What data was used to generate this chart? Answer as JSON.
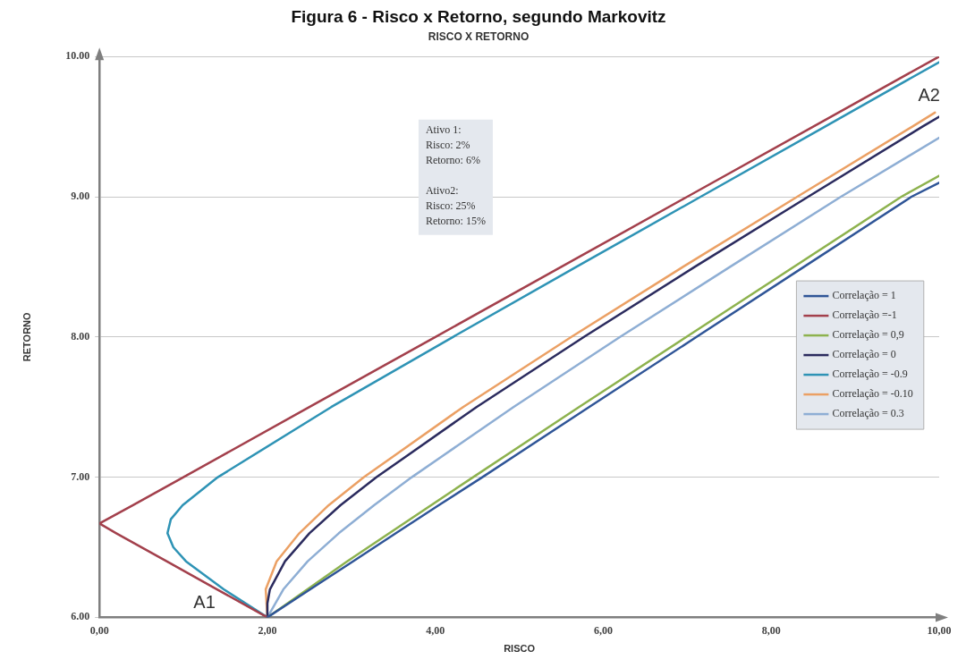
{
  "chart_data": {
    "type": "line",
    "title": "Figura 6 - Risco x Retorno, segundo Markovitz",
    "subtitle": "RISCO X RETORNO",
    "xlabel": "RISCO",
    "ylabel": "RETORNO",
    "xlim": [
      0,
      10
    ],
    "xticks": [
      {
        "value": 0,
        "label": "0,00"
      },
      {
        "value": 2,
        "label": "2,00"
      },
      {
        "value": 4,
        "label": "4,00"
      },
      {
        "value": 6,
        "label": "6,00"
      },
      {
        "value": 8,
        "label": "8,00"
      },
      {
        "value": 10,
        "label": "10,00"
      }
    ],
    "ylim": [
      6,
      10
    ],
    "yticks": [
      {
        "value": 6,
        "label": "6.00"
      },
      {
        "value": 7,
        "label": "7.00"
      },
      {
        "value": 8,
        "label": "8.00"
      },
      {
        "value": 9,
        "label": "9.00"
      },
      {
        "value": 10,
        "label": "10.00"
      }
    ],
    "grid": "y",
    "legend": "right",
    "marker": "none",
    "line_style": "solid",
    "annotations": [
      "Ativo 1:\nRisco: 2%\nRetorno: 6%\n\nAtivo2:\nRisco: 25%\nRetorno: 15%",
      "A1",
      "A2"
    ],
    "series": [
      {
        "name": "Correlação = 1",
        "color": "#2f5597",
        "x": [
          2,
          2.51,
          3.02,
          3.53,
          4.04,
          4.56,
          5.83,
          7.11,
          8.39,
          9.67,
          10
        ],
        "values": [
          6,
          6.2,
          6.4,
          6.6,
          6.8,
          7,
          7.5,
          8,
          8.5,
          9,
          9.1
        ]
      },
      {
        "name": "Correlação =-1",
        "color": "#a3404c",
        "x": [
          2,
          1.4,
          0.8,
          0.2,
          0,
          0.4,
          1,
          2.5,
          4,
          5.5,
          7,
          8.5,
          10
        ],
        "values": [
          6,
          6.2,
          6.4,
          6.6,
          6.67,
          6.8,
          7,
          7.5,
          8,
          8.5,
          9,
          9.5,
          10
        ]
      },
      {
        "name": "Correlação = 0,9",
        "color": "#8db24e",
        "x": [
          2,
          2.95,
          4.45,
          5.71,
          6.99,
          9.55,
          10
        ],
        "values": [
          6,
          6.4,
          7,
          7.5,
          8,
          9,
          9.15
        ]
      },
      {
        "name": "Correlação = 0",
        "color": "#2b2b5e",
        "x": [
          2,
          2,
          2.03,
          2.21,
          2.5,
          2.87,
          3.3,
          4.49,
          5.77,
          7.09,
          8.44,
          9.8,
          10
        ],
        "values": [
          6,
          6.1,
          6.2,
          6.4,
          6.6,
          6.8,
          7,
          7.5,
          8,
          8.5,
          9,
          9.5,
          9.57
        ]
      },
      {
        "name": "Correlação = -0.9",
        "color": "#2e93b5",
        "x": [
          2,
          1.48,
          1.03,
          0.88,
          0.81,
          0.85,
          0.99,
          1.41,
          2.76,
          4.21,
          5.68,
          7.16,
          8.64,
          10
        ],
        "values": [
          6,
          6.2,
          6.4,
          6.5,
          6.6,
          6.7,
          6.8,
          7,
          7.5,
          8,
          8.5,
          9,
          9.5,
          9.96
        ]
      },
      {
        "name": "Correlação = -0.10",
        "color": "#eba064",
        "x": [
          2,
          1.98,
          2.11,
          2.38,
          2.73,
          3.15,
          4.33,
          5.62,
          6.95,
          8.31,
          9.68,
          9.95
        ],
        "values": [
          6,
          6.2,
          6.4,
          6.6,
          6.8,
          7,
          7.5,
          8,
          8.5,
          9,
          9.5,
          9.6
        ]
      },
      {
        "name": "Correlação = 0.3",
        "color": "#8eaed4",
        "x": [
          2,
          2.19,
          2.48,
          2.85,
          3.27,
          3.72,
          4.93,
          6.2,
          7.51,
          8.83,
          10
        ],
        "values": [
          6,
          6.2,
          6.4,
          6.6,
          6.8,
          7,
          7.5,
          8,
          8.5,
          9,
          9.42
        ]
      }
    ]
  }
}
